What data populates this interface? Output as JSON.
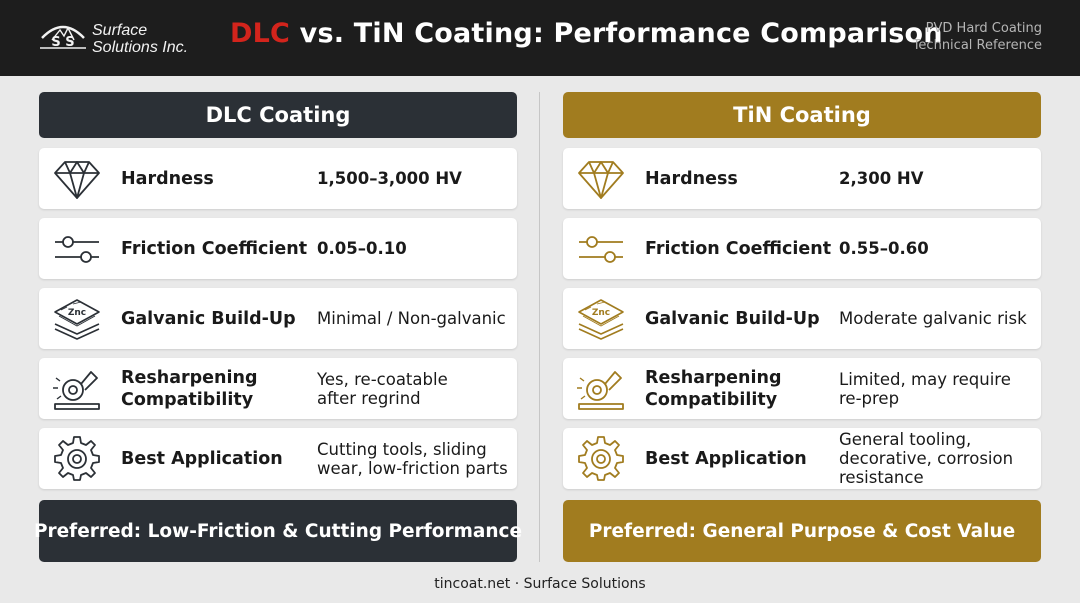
{
  "brand": {
    "line1": "Surface",
    "line2": "Solutions Inc.",
    "mark_letters": "S S"
  },
  "title": {
    "accent": "DLC",
    "rest": " vs. TiN Coating: Performance Comparison"
  },
  "reference": {
    "line1": "PVD Hard Coating",
    "line2": "Technical Reference"
  },
  "colors": {
    "dlc": "#2b3036",
    "tin": "#a17c1f",
    "title_accent": "#d3241c",
    "header_bg": "#1d1d1d"
  },
  "dlc": {
    "heading": "DLC Coating",
    "rows": [
      {
        "icon": "diamond-icon",
        "label": "Hardness",
        "value": "1,500–3,000 HV"
      },
      {
        "icon": "sliders-icon",
        "label": "Friction Coefficient",
        "value": "0.05–0.10"
      },
      {
        "icon": "zinc-layers-icon",
        "icon_text": "Znc",
        "label": "Galvanic Build-Up",
        "value": "Minimal / Non-galvanic"
      },
      {
        "icon": "grinder-icon",
        "label": "Resharpening\nCompatibility",
        "value": "Yes, re-coatable\nafter regrind"
      },
      {
        "icon": "gear-icon",
        "label": "Best Application",
        "value": "Cutting tools, sliding\nwear, low-friction parts"
      }
    ],
    "footer": "Preferred: Low-Friction & Cutting Performance"
  },
  "tin": {
    "heading": "TiN Coating",
    "rows": [
      {
        "icon": "diamond-icon",
        "label": "Hardness",
        "value": "2,300 HV"
      },
      {
        "icon": "sliders-icon",
        "label": "Friction Coefficient",
        "value": "0.55–0.60"
      },
      {
        "icon": "zinc-layers-icon",
        "icon_text": "Znc",
        "label": "Galvanic Build-Up",
        "value": "Moderate galvanic risk"
      },
      {
        "icon": "grinder-icon",
        "label": "Resharpening\nCompatibility",
        "value": "Limited, may require\nre-prep"
      },
      {
        "icon": "gear-icon",
        "label": "Best Application",
        "value": "General tooling,\ndecorative, corrosion\nresistance"
      }
    ],
    "footer": "Preferred: General Purpose & Cost Value"
  },
  "footer": "tincoat.net · Surface Solutions"
}
